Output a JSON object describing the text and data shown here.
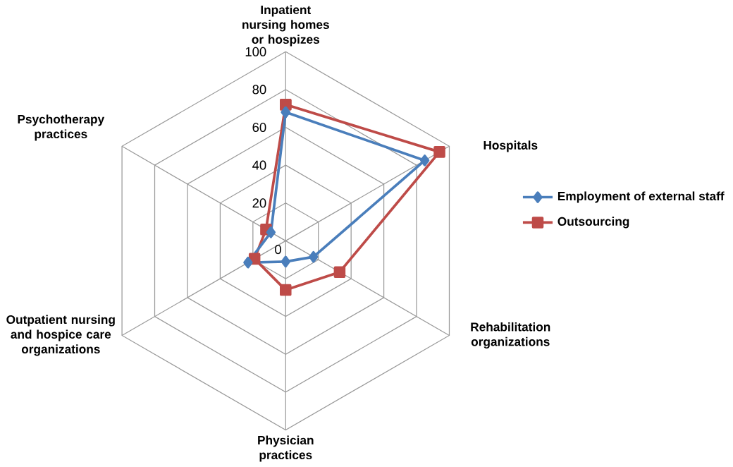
{
  "chart_data": {
    "type": "radar",
    "categories": [
      "Inpatient nursing homes or hospizes",
      "Hospitals",
      "Rehabilitation organizations",
      "Physician practices",
      "Outpatient nursing and hospice care organizations",
      "Psychotherapy practices"
    ],
    "series": [
      {
        "name": "Employment of external staff",
        "color": "#4a7ebb",
        "marker": "diamond",
        "values": [
          68,
          85,
          17,
          11,
          23,
          9
        ]
      },
      {
        "name": "Outsourcing",
        "color": "#be4b48",
        "marker": "square",
        "values": [
          72,
          94,
          33,
          26,
          19,
          12
        ]
      }
    ],
    "ylim": [
      0,
      100
    ],
    "yticks": [
      0,
      20,
      40,
      60,
      80,
      100
    ],
    "grid": true,
    "legend": "right"
  }
}
